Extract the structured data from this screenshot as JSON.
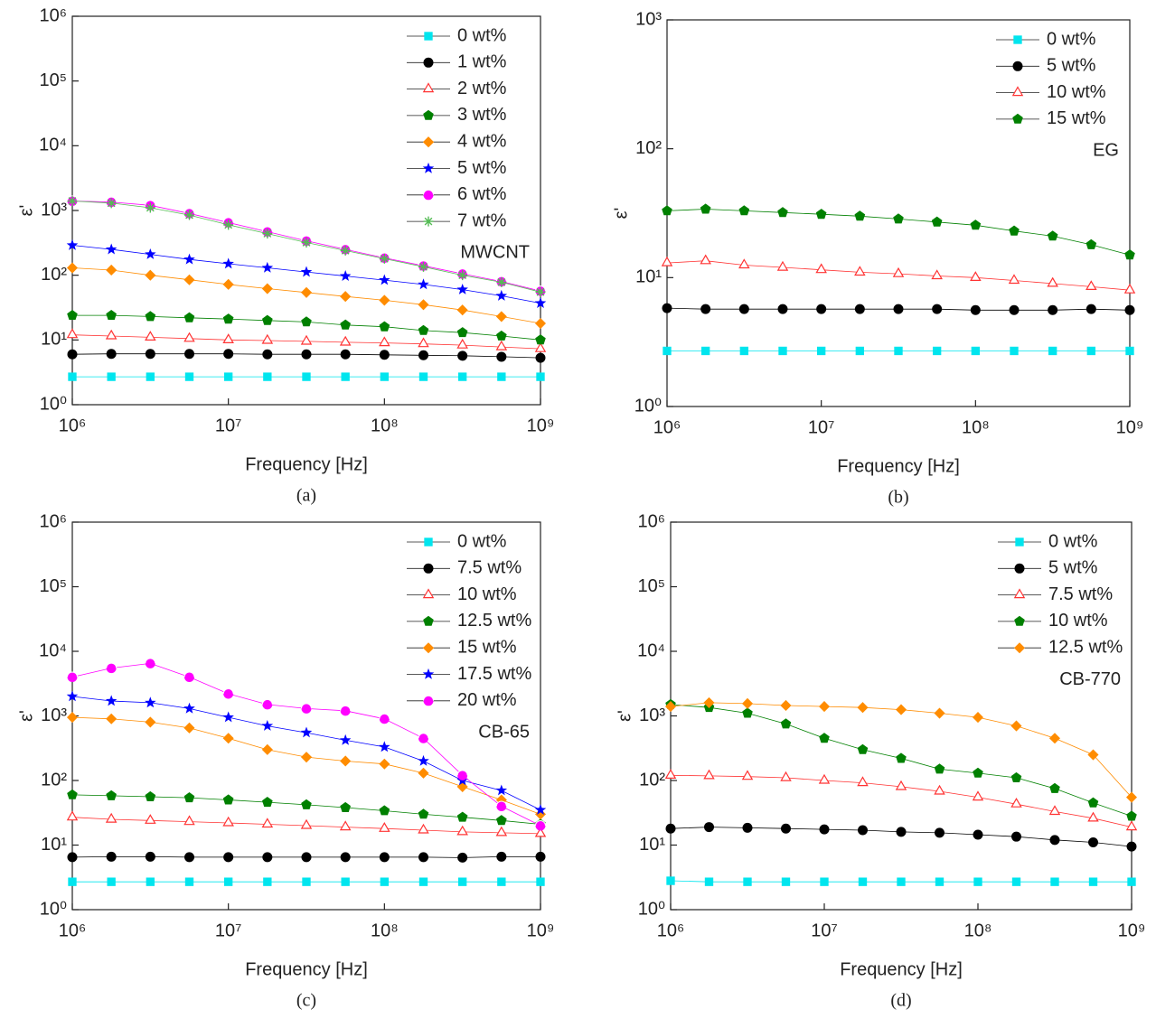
{
  "chart_data": [
    {
      "type": "line",
      "caption": "(a)",
      "xlabel": "Frequency [Hz]",
      "ylabel": "ε'",
      "annotation": "MWCNT",
      "xscale": "log",
      "yscale": "log",
      "xlim": [
        1000000,
        1000000000
      ],
      "ylim": [
        1,
        1000000
      ],
      "xticks": [
        {
          "value": 1000000,
          "label": "10⁶"
        },
        {
          "value": 10000000,
          "label": "10⁷"
        },
        {
          "value": 100000000,
          "label": "10⁸"
        },
        {
          "value": 1000000000,
          "label": "10⁹"
        }
      ],
      "yticks": [
        {
          "value": 1,
          "label": "10⁰"
        },
        {
          "value": 10,
          "label": "10¹"
        },
        {
          "value": 100,
          "label": "10²"
        },
        {
          "value": 1000,
          "label": "10³"
        },
        {
          "value": 10000,
          "label": "10⁴"
        },
        {
          "value": 100000,
          "label": "10⁵"
        },
        {
          "value": 1000000,
          "label": "10⁶"
        }
      ],
      "legend": "upper right",
      "x": [
        1000000,
        1778279,
        3162278,
        5623413,
        10000000,
        17782794,
        31622777,
        56234133,
        100000000,
        177827941,
        316227766,
        562341325,
        1000000000
      ],
      "series": [
        {
          "name": "0 wt%",
          "color": "#00e5ee",
          "marker": "square",
          "values": [
            2.7,
            2.7,
            2.7,
            2.7,
            2.7,
            2.7,
            2.7,
            2.7,
            2.7,
            2.7,
            2.7,
            2.7,
            2.7
          ]
        },
        {
          "name": "1 wt%",
          "color": "#000000",
          "marker": "circle",
          "values": [
            6,
            6.1,
            6.1,
            6.1,
            6.1,
            6,
            6,
            6,
            5.9,
            5.8,
            5.7,
            5.5,
            5.3
          ]
        },
        {
          "name": "2 wt%",
          "color": "#ff3333",
          "marker": "triangle",
          "values": [
            12,
            11.5,
            11,
            10.5,
            10,
            9.8,
            9.5,
            9.2,
            9,
            8.7,
            8.3,
            7.8,
            7.3
          ]
        },
        {
          "name": "3 wt%",
          "color": "#008000",
          "marker": "pentagon",
          "values": [
            24,
            24,
            23,
            22,
            21,
            20,
            19,
            17,
            16,
            14,
            13,
            11.5,
            10
          ]
        },
        {
          "name": "4 wt%",
          "color": "#ff8c00",
          "marker": "diamond",
          "values": [
            130,
            120,
            100,
            85,
            72,
            62,
            54,
            47,
            41,
            35,
            29,
            23,
            18
          ]
        },
        {
          "name": "5 wt%",
          "color": "#0000ff",
          "marker": "star",
          "values": [
            290,
            250,
            210,
            175,
            150,
            130,
            112,
            97,
            84,
            72,
            60,
            48,
            37
          ]
        },
        {
          "name": "6 wt%",
          "color": "#ff00ff",
          "marker": "circle-half",
          "values": [
            1400,
            1350,
            1200,
            900,
            650,
            470,
            340,
            250,
            185,
            140,
            105,
            80,
            57
          ]
        },
        {
          "name": "7 wt%",
          "color": "#55bb55",
          "marker": "asterisk",
          "values": [
            1400,
            1300,
            1100,
            850,
            600,
            440,
            320,
            240,
            180,
            135,
            100,
            78,
            55
          ]
        }
      ]
    },
    {
      "type": "line",
      "caption": "(b)",
      "xlabel": "Frequency [Hz]",
      "ylabel": "ε'",
      "annotation": "EG",
      "xscale": "log",
      "yscale": "log",
      "xlim": [
        1000000,
        1000000000
      ],
      "ylim": [
        1,
        1000
      ],
      "xticks": [
        {
          "value": 1000000,
          "label": "10⁶"
        },
        {
          "value": 10000000,
          "label": "10⁷"
        },
        {
          "value": 100000000,
          "label": "10⁸"
        },
        {
          "value": 1000000000,
          "label": "10⁹"
        }
      ],
      "yticks": [
        {
          "value": 1,
          "label": "10⁰"
        },
        {
          "value": 10,
          "label": "10¹"
        },
        {
          "value": 100,
          "label": "10²"
        },
        {
          "value": 1000,
          "label": "10³"
        }
      ],
      "legend": "upper right",
      "x": [
        1000000,
        1778279,
        3162278,
        5623413,
        10000000,
        17782794,
        31622777,
        56234133,
        100000000,
        177827941,
        316227766,
        562341325,
        1000000000
      ],
      "series": [
        {
          "name": "0 wt%",
          "color": "#00e5ee",
          "marker": "square",
          "values": [
            2.7,
            2.7,
            2.7,
            2.7,
            2.7,
            2.7,
            2.7,
            2.7,
            2.7,
            2.7,
            2.7,
            2.7,
            2.7
          ]
        },
        {
          "name": "5 wt%",
          "color": "#000000",
          "marker": "circle",
          "values": [
            5.8,
            5.7,
            5.7,
            5.7,
            5.7,
            5.7,
            5.7,
            5.7,
            5.6,
            5.6,
            5.6,
            5.7,
            5.6
          ]
        },
        {
          "name": "10 wt%",
          "color": "#ff3333",
          "marker": "triangle",
          "values": [
            13,
            13.5,
            12.5,
            12,
            11.5,
            11,
            10.7,
            10.3,
            10,
            9.5,
            9,
            8.5,
            8
          ]
        },
        {
          "name": "15 wt%",
          "color": "#008000",
          "marker": "pentagon",
          "values": [
            33,
            34,
            33,
            32,
            31,
            30,
            28.5,
            27,
            25.5,
            23,
            21,
            18,
            15
          ]
        }
      ]
    },
    {
      "type": "line",
      "caption": "(c)",
      "xlabel": "Frequency [Hz]",
      "ylabel": "ε'",
      "annotation": "CB-65",
      "xscale": "log",
      "yscale": "log",
      "xlim": [
        1000000,
        1000000000
      ],
      "ylim": [
        1,
        1000000
      ],
      "xticks": [
        {
          "value": 1000000,
          "label": "10⁶"
        },
        {
          "value": 10000000,
          "label": "10⁷"
        },
        {
          "value": 100000000,
          "label": "10⁸"
        },
        {
          "value": 1000000000,
          "label": "10⁹"
        }
      ],
      "yticks": [
        {
          "value": 1,
          "label": "10⁰"
        },
        {
          "value": 10,
          "label": "10¹"
        },
        {
          "value": 100,
          "label": "10²"
        },
        {
          "value": 1000,
          "label": "10³"
        },
        {
          "value": 10000,
          "label": "10⁴"
        },
        {
          "value": 100000,
          "label": "10⁵"
        },
        {
          "value": 1000000,
          "label": "10⁶"
        }
      ],
      "legend": "upper right",
      "x": [
        1000000,
        1778279,
        3162278,
        5623413,
        10000000,
        17782794,
        31622777,
        56234133,
        100000000,
        177827941,
        316227766,
        562341325,
        1000000000
      ],
      "series": [
        {
          "name": "0 wt%",
          "color": "#00e5ee",
          "marker": "square",
          "values": [
            2.7,
            2.7,
            2.7,
            2.7,
            2.7,
            2.7,
            2.7,
            2.7,
            2.7,
            2.7,
            2.7,
            2.7,
            2.7
          ]
        },
        {
          "name": "7.5 wt%",
          "color": "#000000",
          "marker": "circle",
          "values": [
            6.5,
            6.6,
            6.6,
            6.5,
            6.5,
            6.5,
            6.5,
            6.5,
            6.5,
            6.5,
            6.4,
            6.6,
            6.6
          ]
        },
        {
          "name": "10 wt%",
          "color": "#ff3333",
          "marker": "triangle",
          "values": [
            27,
            25,
            24,
            23,
            22,
            21,
            20,
            19,
            18,
            17,
            16,
            15.5,
            15
          ]
        },
        {
          "name": "12.5 wt%",
          "color": "#008000",
          "marker": "pentagon",
          "values": [
            60,
            58,
            56,
            54,
            50,
            46,
            42,
            38,
            34,
            30,
            27,
            24,
            21
          ]
        },
        {
          "name": "15 wt%",
          "color": "#ff8c00",
          "marker": "diamond",
          "values": [
            950,
            900,
            800,
            650,
            450,
            300,
            230,
            200,
            180,
            130,
            80,
            50,
            30
          ]
        },
        {
          "name": "17.5 wt%",
          "color": "#0000ff",
          "marker": "star",
          "values": [
            2000,
            1700,
            1600,
            1300,
            950,
            700,
            550,
            420,
            330,
            200,
            100,
            70,
            35
          ]
        },
        {
          "name": "20 wt%",
          "color": "#ff00ff",
          "marker": "circle-half",
          "values": [
            4000,
            5500,
            6500,
            4000,
            2200,
            1500,
            1300,
            1200,
            900,
            450,
            120,
            40,
            20
          ]
        }
      ]
    },
    {
      "type": "line",
      "caption": "(d)",
      "xlabel": "Frequency [Hz]",
      "ylabel": "ε'",
      "annotation": "CB-770",
      "xscale": "log",
      "yscale": "log",
      "xlim": [
        1000000,
        1000000000
      ],
      "ylim": [
        1,
        1000000
      ],
      "xticks": [
        {
          "value": 1000000,
          "label": "10⁶"
        },
        {
          "value": 10000000,
          "label": "10⁷"
        },
        {
          "value": 100000000,
          "label": "10⁸"
        },
        {
          "value": 1000000000,
          "label": "10⁹"
        }
      ],
      "yticks": [
        {
          "value": 1,
          "label": "10⁰"
        },
        {
          "value": 10,
          "label": "10¹"
        },
        {
          "value": 100,
          "label": "10²"
        },
        {
          "value": 1000,
          "label": "10³"
        },
        {
          "value": 10000,
          "label": "10⁴"
        },
        {
          "value": 100000,
          "label": "10⁵"
        },
        {
          "value": 1000000,
          "label": "10⁶"
        }
      ],
      "legend": "upper right",
      "x": [
        1000000,
        1778279,
        3162278,
        5623413,
        10000000,
        17782794,
        31622777,
        56234133,
        100000000,
        177827941,
        316227766,
        562341325,
        1000000000
      ],
      "series": [
        {
          "name": "0 wt%",
          "color": "#00e5ee",
          "marker": "square",
          "values": [
            2.8,
            2.7,
            2.7,
            2.7,
            2.7,
            2.7,
            2.7,
            2.7,
            2.7,
            2.7,
            2.7,
            2.7,
            2.7
          ]
        },
        {
          "name": "5 wt%",
          "color": "#000000",
          "marker": "circle",
          "values": [
            18,
            19,
            18.5,
            18,
            17.5,
            17,
            16,
            15.5,
            14.5,
            13.5,
            12,
            11,
            9.5
          ]
        },
        {
          "name": "7.5 wt%",
          "color": "#ff3333",
          "marker": "triangle",
          "values": [
            120,
            118,
            115,
            110,
            100,
            92,
            80,
            68,
            55,
            43,
            33,
            26,
            19
          ]
        },
        {
          "name": "10 wt%",
          "color": "#008000",
          "marker": "pentagon",
          "values": [
            1500,
            1350,
            1100,
            750,
            450,
            300,
            220,
            150,
            130,
            110,
            75,
            45,
            28
          ]
        },
        {
          "name": "12.5 wt%",
          "color": "#ff8c00",
          "marker": "diamond",
          "values": [
            1400,
            1600,
            1550,
            1450,
            1400,
            1350,
            1250,
            1100,
            950,
            700,
            450,
            250,
            55
          ]
        }
      ]
    }
  ]
}
